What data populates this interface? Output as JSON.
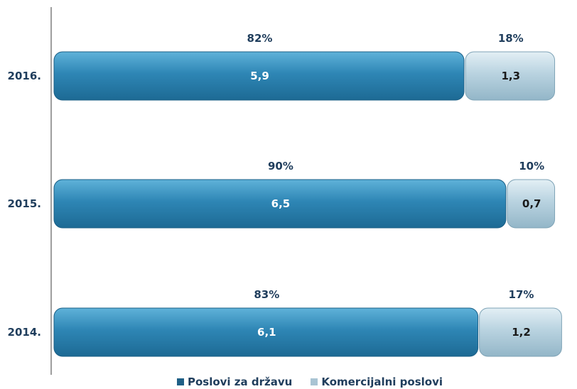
{
  "chart_data": {
    "type": "bar",
    "orientation": "horizontal",
    "stacked": true,
    "categories": [
      "2016.",
      "2015.",
      "2014."
    ],
    "series": [
      {
        "name": "Poslovi za državu",
        "values": [
          5.9,
          6.5,
          6.1
        ],
        "value_labels": [
          "5,9",
          "6,5",
          "6,1"
        ],
        "percent_labels": [
          "82%",
          "90%",
          "83%"
        ],
        "color": "#2e86b5"
      },
      {
        "name": "Komercijalni poslovi",
        "values": [
          1.3,
          0.7,
          1.2
        ],
        "value_labels": [
          "1,3",
          "0,7",
          "1,2"
        ],
        "percent_labels": [
          "18%",
          "10%",
          "17%"
        ],
        "color": "#b9d3e0"
      }
    ],
    "grid": false,
    "legend": "bottom"
  }
}
